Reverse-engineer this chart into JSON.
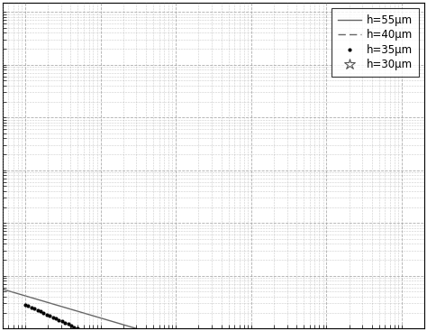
{
  "legend_entries": [
    {
      "label": "h=30μm",
      "marker": "*",
      "linestyle": "none",
      "color": "#666666"
    },
    {
      "label": "h=40μm",
      "linestyle": "--",
      "color": "#666666"
    },
    {
      "label": "h=35μm",
      "marker": "o",
      "linestyle": "none",
      "color": "#000000"
    },
    {
      "label": "h=55μm",
      "linestyle": "-",
      "color": "#666666"
    }
  ],
  "background_color": "#ffffff",
  "grid_color": "#999999"
}
